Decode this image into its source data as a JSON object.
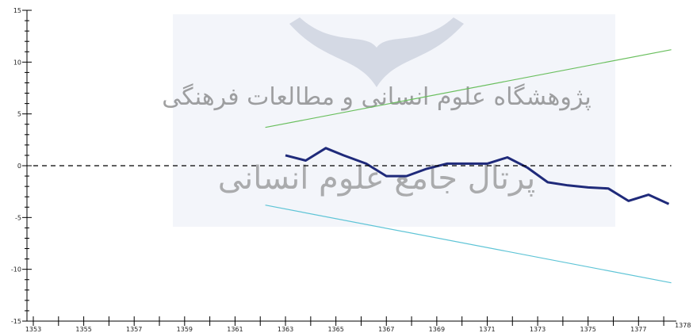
{
  "watermark": {
    "line1": "پژوهشگاه علوم انسانی و مطالعات فرهنگی",
    "line2": "پرتال جامع علوم انسانی",
    "color": "#aab4c8"
  },
  "chart_data": {
    "type": "line",
    "title": "",
    "xlabel": "",
    "ylabel": "",
    "xlim": [
      1353,
      1378.5
    ],
    "ylim": [
      -15,
      15
    ],
    "x_ticks": [
      1353,
      1355,
      1357,
      1359,
      1361,
      1363,
      1365,
      1367,
      1369,
      1371,
      1373,
      1375,
      1377,
      1378
    ],
    "y_ticks": [
      -15,
      -10,
      -5,
      0,
      5,
      10,
      15
    ],
    "grid": false,
    "legend": "none",
    "series": [
      {
        "key": "main",
        "color": "#1f2a7a",
        "x": [
          1363,
          1363.8,
          1364.6,
          1365.3,
          1366.2,
          1367,
          1367.8,
          1368.6,
          1369.4,
          1370.2,
          1371,
          1371.8,
          1372.6,
          1373.4,
          1374.2,
          1375,
          1375.8,
          1376.6,
          1377.4,
          1378.2
        ],
        "y": [
          1.0,
          0.5,
          1.7,
          1.0,
          0.2,
          -1.0,
          -1.0,
          -0.3,
          0.2,
          0.2,
          0.2,
          0.8,
          -0.2,
          -1.6,
          -1.9,
          -2.1,
          -2.2,
          -3.4,
          -2.8,
          -3.7
        ]
      },
      {
        "key": "upper-bound",
        "color": "#6abf5e",
        "x": [
          1362.2,
          1378.3
        ],
        "y": [
          3.7,
          11.2
        ]
      },
      {
        "key": "lower-bound",
        "color": "#5ec4d6",
        "x": [
          1362.2,
          1378.3
        ],
        "y": [
          -3.8,
          -11.3
        ]
      },
      {
        "key": "zero-reference",
        "color": "#000000",
        "dashed": true,
        "x": [
          1353,
          1378.3
        ],
        "y": [
          0,
          0
        ]
      }
    ]
  }
}
